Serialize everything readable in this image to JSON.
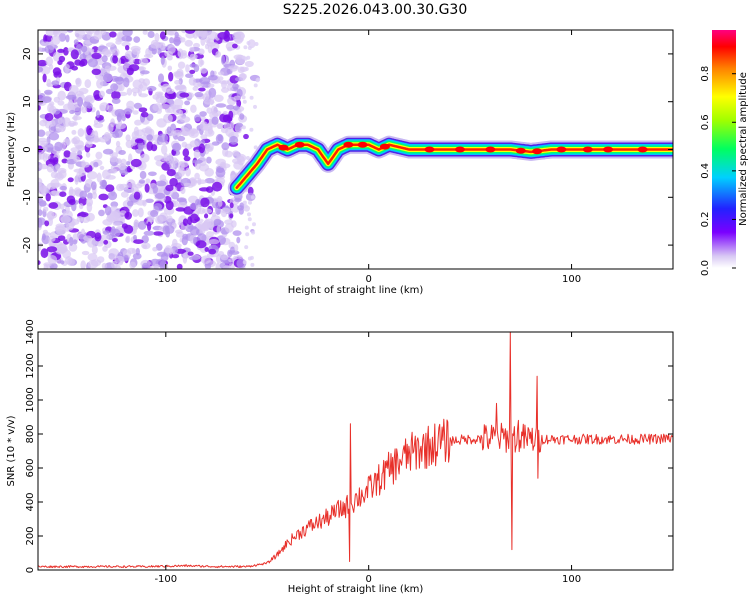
{
  "title": "S225.2026.043.00.30.G30",
  "chart_data": [
    {
      "type": "heatmap",
      "name": "spectrogram",
      "xlabel": "Height of straight line (km)",
      "ylabel": "Frequency (Hz)",
      "xlim": [
        -163,
        150
      ],
      "ylim": [
        -25,
        25
      ],
      "xticks": [
        -100,
        0,
        100
      ],
      "yticks": [
        -20,
        -10,
        0,
        10,
        20
      ],
      "colorbar": {
        "label": "Normalized spectral amplitude",
        "range": [
          0,
          0.98
        ],
        "ticks": [
          0.0,
          0.2,
          0.4,
          0.6,
          0.8
        ]
      },
      "ridge": {
        "x": [
          -65,
          -55,
          -50,
          -45,
          -40,
          -35,
          -30,
          -25,
          -20,
          -15,
          -10,
          -5,
          0,
          5,
          10,
          20,
          30,
          40,
          50,
          55,
          60,
          65,
          70,
          80,
          90,
          100,
          110,
          120,
          130,
          140,
          150
        ],
        "frequency": [
          -8,
          -3,
          0,
          1,
          0,
          1,
          1,
          0,
          -3,
          0,
          1,
          1,
          1,
          0,
          1,
          0,
          0,
          0,
          0,
          0,
          0,
          0,
          0,
          -0.5,
          0,
          0,
          0,
          0,
          0,
          0,
          0
        ]
      },
      "noise_region_x": [
        -163,
        -62
      ]
    },
    {
      "type": "line",
      "name": "snr",
      "xlabel": "Height of straight line (km)",
      "ylabel": "SNR (10 * v/v)",
      "xlim": [
        -163,
        150
      ],
      "ylim": [
        0,
        1400
      ],
      "xticks": [
        -100,
        0,
        100
      ],
      "yticks": [
        0,
        200,
        400,
        600,
        800,
        1000,
        1200,
        1400
      ],
      "color": "#e8302a",
      "envelope": {
        "x": [
          -163,
          -110,
          -90,
          -75,
          -60,
          -50,
          -45,
          -40,
          -35,
          -30,
          -25,
          -20,
          -15,
          -10,
          -5,
          0,
          5,
          10,
          15,
          20,
          25,
          30,
          35,
          40,
          50,
          60,
          70,
          80,
          90,
          100,
          110,
          120,
          130,
          140,
          150
        ],
        "y": [
          20,
          20,
          25,
          20,
          20,
          40,
          90,
          160,
          210,
          250,
          280,
          310,
          350,
          380,
          430,
          470,
          530,
          590,
          640,
          680,
          710,
          730,
          750,
          760,
          770,
          775,
          780,
          770,
          770,
          770,
          770,
          770,
          770,
          770,
          775
        ]
      },
      "spikes": [
        {
          "x": -9,
          "y": 860
        },
        {
          "x": -9.5,
          "y": 50
        },
        {
          "x": 63,
          "y": 980
        },
        {
          "x": 70,
          "y": 1400
        },
        {
          "x": 70.5,
          "y": 120
        },
        {
          "x": 74,
          "y": 880
        },
        {
          "x": 83,
          "y": 1140
        },
        {
          "x": 83.5,
          "y": 540
        }
      ]
    }
  ]
}
